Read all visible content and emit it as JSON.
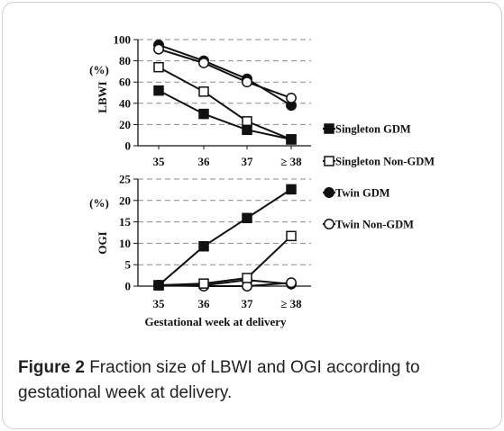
{
  "caption": {
    "label": "Figure 2",
    "text": "Fraction size of LBWI and OGI according to gestational week at delivery."
  },
  "chart_data": [
    {
      "type": "line",
      "ylabel": "LBWI",
      "unit": "(%)",
      "categories": [
        "35",
        "36",
        "37",
        "≥ 38"
      ],
      "ylim": [
        0,
        100
      ],
      "yticks": [
        "0",
        "20",
        "40",
        "60",
        "80",
        "100"
      ],
      "grid": "horizontal dashed",
      "series": [
        {
          "name": "Singleton GDM",
          "marker": "filled-square",
          "values": [
            52,
            30,
            15,
            6
          ]
        },
        {
          "name": "Singleton Non-GDM",
          "marker": "open-square",
          "values": [
            74,
            51,
            23,
            6
          ]
        },
        {
          "name": "Twin GDM",
          "marker": "filled-circle",
          "values": [
            95,
            80,
            63,
            38
          ]
        },
        {
          "name": "Twin Non-GDM",
          "marker": "open-circle",
          "values": [
            91,
            78,
            60,
            45
          ]
        }
      ]
    },
    {
      "type": "line",
      "ylabel": "OGI",
      "unit": "(%)",
      "xlabel": "Gestational week at delivery",
      "categories": [
        "35",
        "36",
        "37",
        "≥ 38"
      ],
      "ylim": [
        0,
        25
      ],
      "yticks": [
        "0",
        "5",
        "10",
        "15",
        "20",
        "25"
      ],
      "grid": "horizontal dashed",
      "series": [
        {
          "name": "Singleton GDM",
          "marker": "filled-square",
          "values": [
            0.2,
            9.3,
            15.9,
            22.6
          ]
        },
        {
          "name": "Singleton Non-GDM",
          "marker": "open-square",
          "values": [
            0.2,
            0.6,
            1.9,
            11.7
          ]
        },
        {
          "name": "Twin GDM",
          "marker": "filled-circle",
          "values": [
            0.2,
            0.2,
            1.4,
            0.5
          ]
        },
        {
          "name": "Twin Non-GDM",
          "marker": "open-circle",
          "values": [
            0.2,
            0.0,
            0.0,
            0.8
          ]
        }
      ]
    }
  ],
  "legend": [
    {
      "name": "Singleton GDM",
      "marker": "filled-square"
    },
    {
      "name": "Singleton Non-GDM",
      "marker": "open-square"
    },
    {
      "name": "Twin GDM",
      "marker": "filled-circle"
    },
    {
      "name": "Twin Non-GDM",
      "marker": "open-circle"
    }
  ]
}
